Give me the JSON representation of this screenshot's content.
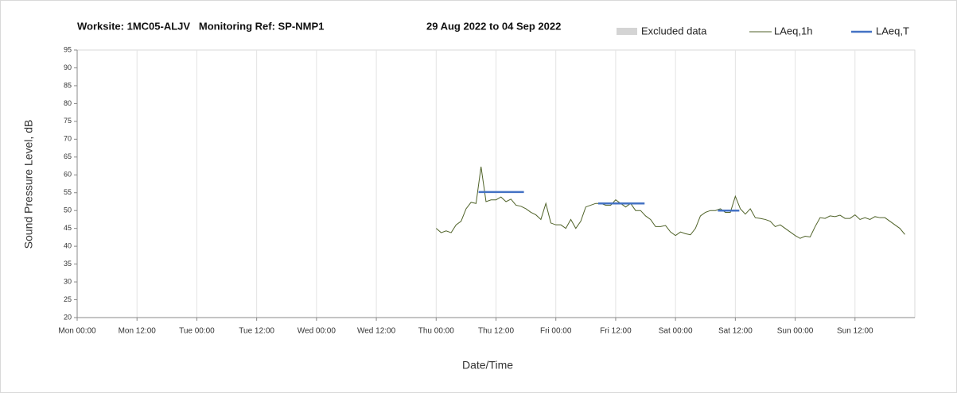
{
  "chart_data": {
    "type": "line",
    "title": "Worksite: 1MC05-ALJV   Monitoring Ref: SP-NMP1",
    "subtitle": "29 Aug 2022 to 04 Sep 2022",
    "x_label": "Date/Time",
    "y_label": "Sound Pressure Level, dB",
    "xlim": [
      0,
      168
    ],
    "xticks": [
      {
        "value": 0,
        "label": "Mon 00:00"
      },
      {
        "value": 12,
        "label": "Mon 12:00"
      },
      {
        "value": 24,
        "label": "Tue 00:00"
      },
      {
        "value": 36,
        "label": "Tue 12:00"
      },
      {
        "value": 48,
        "label": "Wed 00:00"
      },
      {
        "value": 60,
        "label": "Wed 12:00"
      },
      {
        "value": 72,
        "label": "Thu 00:00"
      },
      {
        "value": 84,
        "label": "Thu 12:00"
      },
      {
        "value": 96,
        "label": "Fri 00:00"
      },
      {
        "value": 108,
        "label": "Fri 12:00"
      },
      {
        "value": 120,
        "label": "Sat 00:00"
      },
      {
        "value": 132,
        "label": "Sat 12:00"
      },
      {
        "value": 144,
        "label": "Sun 00:00"
      },
      {
        "value": 156,
        "label": "Sun 12:00"
      }
    ],
    "ylim": [
      20,
      95
    ],
    "yticks": [
      20,
      25,
      30,
      35,
      40,
      45,
      50,
      55,
      60,
      65,
      70,
      75,
      80,
      85,
      90,
      95
    ],
    "grid": "x",
    "series": [
      {
        "name": "Excluded data",
        "color": "#d4d4d4",
        "kind": "area",
        "x": [],
        "values": []
      },
      {
        "name": "LAeq,1h",
        "color": "#4f6228",
        "kind": "line",
        "x": [
          72,
          73,
          74,
          75,
          76,
          77,
          78,
          79,
          80,
          81,
          82,
          83,
          84,
          85,
          86,
          87,
          88,
          89,
          90,
          91,
          92,
          93,
          94,
          95,
          96,
          97,
          98,
          99,
          100,
          101,
          102,
          103,
          104,
          105,
          106,
          107,
          108,
          109,
          110,
          111,
          112,
          113,
          114,
          115,
          116,
          117,
          118,
          119,
          120,
          121,
          122,
          123,
          124,
          125,
          126,
          127,
          128,
          129,
          130,
          131,
          132,
          133,
          134,
          135,
          136,
          137,
          138,
          139,
          140,
          141,
          142,
          143,
          144,
          145,
          146,
          147,
          148,
          149,
          150,
          151,
          152,
          153,
          154,
          155,
          156,
          157,
          158,
          159,
          160,
          161,
          162,
          163,
          164,
          165,
          166
        ],
        "values": [
          45,
          43.8,
          44.3,
          43.8,
          46,
          47,
          50.5,
          52.3,
          52,
          62.3,
          52.5,
          53,
          53,
          53.8,
          52.5,
          53.2,
          51.5,
          51.2,
          50.5,
          49.5,
          48.8,
          47.5,
          52,
          46.5,
          46,
          46,
          45,
          47.5,
          45,
          47,
          51,
          51.5,
          52,
          52,
          51.5,
          51.5,
          53,
          52,
          51,
          52,
          50,
          50,
          48.5,
          47.5,
          45.5,
          45.5,
          45.8,
          44,
          43,
          44,
          43.5,
          43.2,
          45,
          48.5,
          49.5,
          50,
          50,
          50.5,
          49.5,
          49.5,
          54,
          50.5,
          49,
          50.5,
          48,
          47.8,
          47.5,
          47,
          45.5,
          46,
          45,
          44,
          43,
          42.2,
          42.8,
          42.6,
          45.5,
          48,
          47.8,
          48.5,
          48.3,
          48.7,
          47.8,
          47.8,
          48.8,
          47.5,
          48,
          47.5,
          48.3,
          48,
          48,
          47,
          46,
          45,
          43.3
        ]
      },
      {
        "name": "LAeq,T",
        "color": "#4472c4",
        "kind": "segments",
        "segments": [
          {
            "start": 80.5,
            "end": 89.6,
            "value": 55.2
          },
          {
            "start": 104.5,
            "end": 113.8,
            "value": 52
          },
          {
            "start": 128.5,
            "end": 132.8,
            "value": 50
          }
        ]
      }
    ]
  }
}
